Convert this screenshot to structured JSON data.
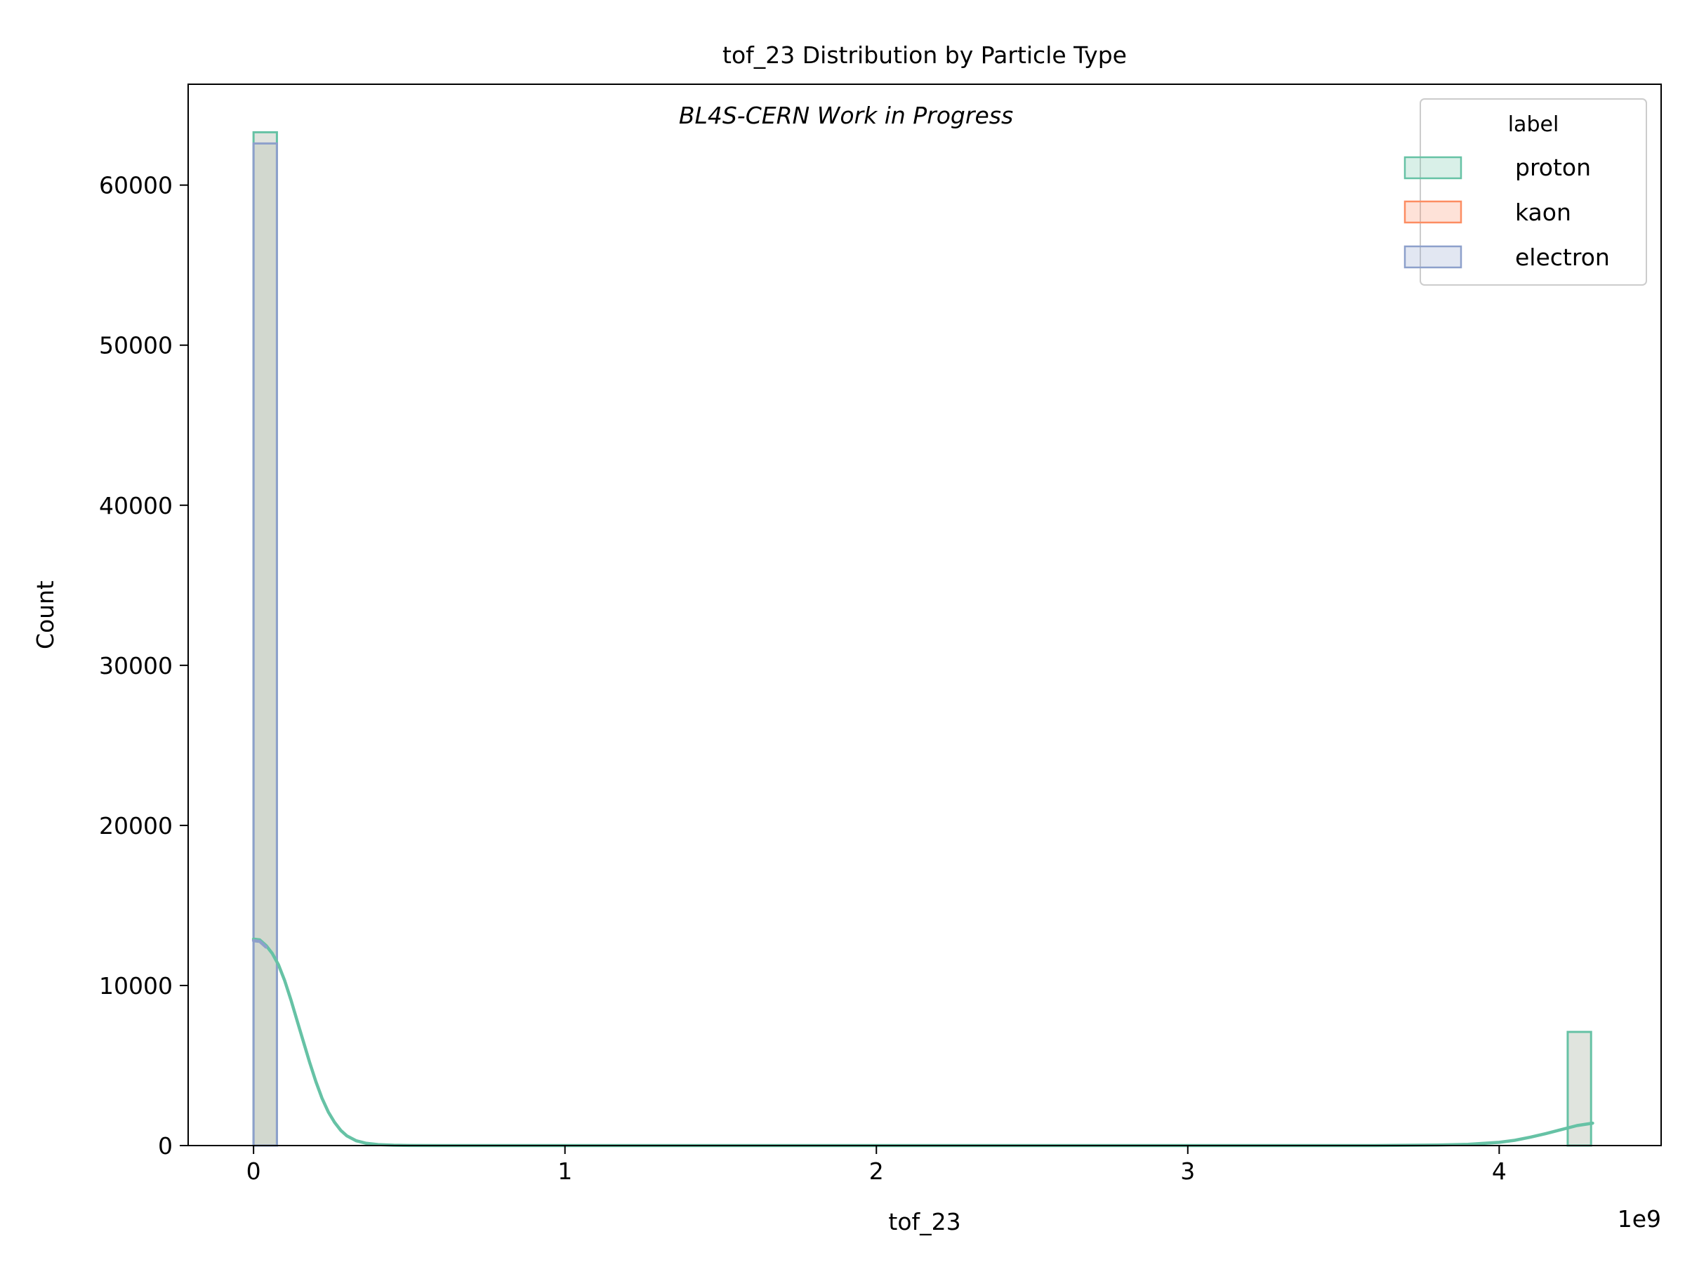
{
  "chart_data": {
    "type": "bar",
    "title": "tof_23 Distribution by Particle Type",
    "watermark": "BL4S-CERN Work in Progress",
    "xlabel": "tof_23",
    "ylabel": "Count",
    "x_offset_label": "1e9",
    "xlim": [
      -0.21,
      4.52
    ],
    "ylim": [
      0,
      66300
    ],
    "x_ticks": [
      0,
      1,
      2,
      3,
      4
    ],
    "x_tick_labels": [
      "0",
      "1",
      "2",
      "3",
      "4"
    ],
    "y_ticks": [
      0,
      10000,
      20000,
      30000,
      40000,
      50000,
      60000
    ],
    "y_tick_labels": [
      "0",
      "10000",
      "20000",
      "30000",
      "40000",
      "50000",
      "60000"
    ],
    "grid": false,
    "legend": {
      "title": "label",
      "placement": "top-right",
      "entries": [
        "proton",
        "kaon",
        "electron"
      ]
    },
    "colors": {
      "proton": "#66c2a5",
      "kaon": "#fc8d62",
      "electron": "#8da0cb",
      "overlap_fill": "#c6cdc3"
    },
    "series": [
      {
        "name": "proton",
        "bins": [
          {
            "x0": 0.0,
            "x1": 0.075,
            "count": 63300
          },
          {
            "x0": 4.22,
            "x1": 4.295,
            "count": 7100
          }
        ],
        "kde": {
          "x": [
            0.0,
            0.02,
            0.04,
            0.06,
            0.08,
            0.1,
            0.12,
            0.14,
            0.16,
            0.18,
            0.2,
            0.22,
            0.24,
            0.26,
            0.28,
            0.3,
            0.33,
            0.36,
            0.4,
            0.45,
            0.5,
            0.6,
            1.0,
            2.0,
            3.0,
            3.6,
            3.8,
            3.9,
            4.0,
            4.05,
            4.1,
            4.15,
            4.2,
            4.25,
            4.3
          ],
          "y": [
            12900,
            12850,
            12500,
            12000,
            11300,
            10300,
            9100,
            7800,
            6500,
            5200,
            4000,
            2950,
            2100,
            1450,
            950,
            600,
            300,
            150,
            60,
            20,
            5,
            0,
            0,
            0,
            0,
            0,
            30,
            80,
            200,
            330,
            520,
            750,
            1000,
            1250,
            1400
          ]
        }
      },
      {
        "name": "kaon",
        "bins": [],
        "kde": {
          "x": [],
          "y": []
        }
      },
      {
        "name": "electron",
        "bins": [
          {
            "x0": 0.0,
            "x1": 0.075,
            "count": 62600
          }
        ],
        "kde": {
          "x": [
            0.0,
            0.02,
            0.04
          ],
          "y": [
            12800,
            12750,
            12400
          ]
        }
      }
    ]
  }
}
